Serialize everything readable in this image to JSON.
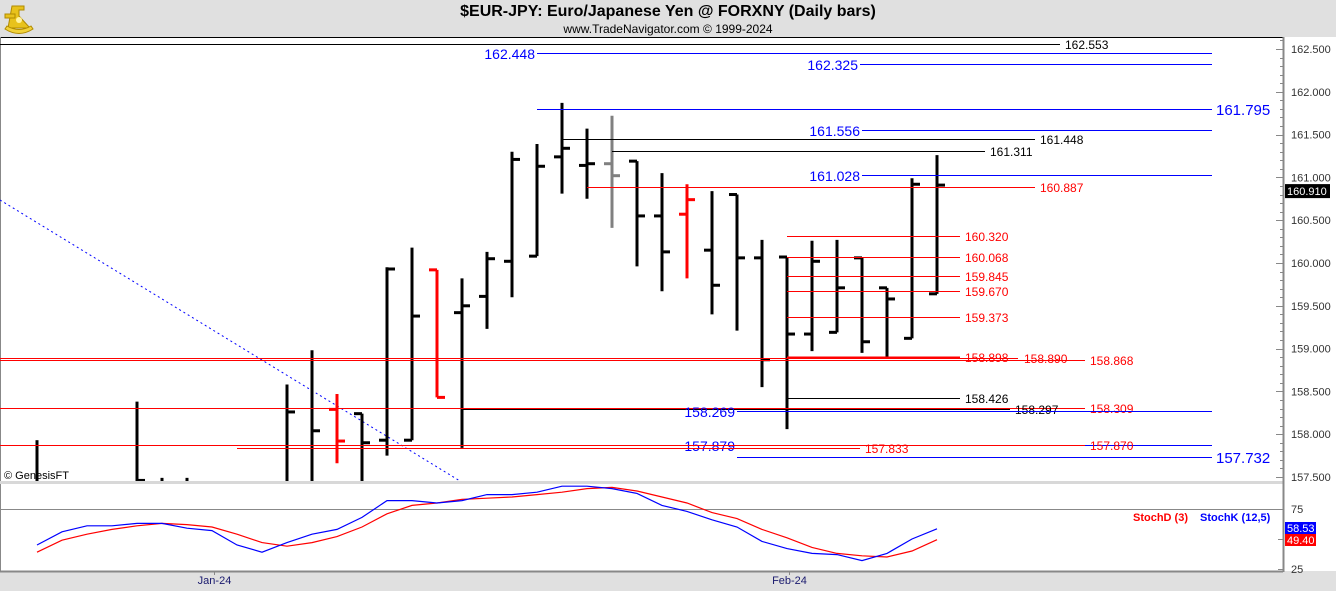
{
  "header": {
    "title": "$EUR-JPY:  Euro/Japanese Yen @ FORXNY  (Daily bars)",
    "subtitle": "www.TradeNavigator.com © 1999-2024",
    "logo_icon": "sextant-icon"
  },
  "watermark": "© GenesisFT",
  "colors": {
    "up_bar": "#000000",
    "down_bar": "#ff0000",
    "gray_bar": "#808080",
    "blue": "#0000ff",
    "red": "#ff0000",
    "black": "#000000",
    "panel_bg": "#ffffff",
    "frame_bg": "#e0e0e0"
  },
  "chart_data": [
    {
      "type": "ohlc",
      "title": "$EUR-JPY:  Euro/Japanese Yen @ FORXNY  (Daily bars)",
      "ylim": [
        157.5,
        162.6
      ],
      "y_ticks": [
        "157.500",
        "158.000",
        "158.500",
        "159.000",
        "159.500",
        "160.000",
        "160.500",
        "161.000",
        "161.500",
        "162.000",
        "162.500"
      ],
      "x_tick_labels": [
        {
          "label": "Jan-24",
          "bar": 7.1
        },
        {
          "label": "Feb-24",
          "bar": 30.1
        }
      ],
      "last_price_label": "160.910",
      "bars": [
        {
          "o": 157.3,
          "h": 157.93,
          "l": 157.2,
          "c": 157.4,
          "color": "black"
        },
        null,
        null,
        null,
        {
          "o": 157.3,
          "h": 158.38,
          "l": 157.2,
          "c": 157.46,
          "color": "black"
        },
        {
          "o": 157.3,
          "h": 157.49,
          "l": 157.2,
          "c": 157.35,
          "color": "black"
        },
        {
          "o": 157.3,
          "h": 157.49,
          "l": 157.2,
          "c": 157.35,
          "color": "black"
        },
        null,
        null,
        null,
        {
          "o": 157.3,
          "h": 158.58,
          "l": 157.2,
          "c": 158.26,
          "color": "black"
        },
        {
          "o": 157.3,
          "h": 158.98,
          "l": 157.2,
          "c": 158.04,
          "color": "black"
        },
        {
          "o": 158.29,
          "h": 158.47,
          "l": 157.66,
          "c": 157.92,
          "color": "red"
        },
        {
          "o": 158.24,
          "h": 158.24,
          "l": 157.2,
          "c": 157.9,
          "color": "black"
        },
        {
          "o": 157.93,
          "h": 159.95,
          "l": 157.75,
          "c": 159.93,
          "color": "black"
        },
        {
          "o": 157.93,
          "h": 160.18,
          "l": 157.93,
          "c": 159.38,
          "color": "black"
        },
        {
          "o": 159.92,
          "h": 159.92,
          "l": 158.43,
          "c": 158.43,
          "color": "red"
        },
        {
          "o": 159.42,
          "h": 159.82,
          "l": 157.84,
          "c": 159.5,
          "color": "black"
        },
        {
          "o": 159.61,
          "h": 160.13,
          "l": 159.23,
          "c": 160.05,
          "color": "black"
        },
        {
          "o": 160.02,
          "h": 161.3,
          "l": 159.6,
          "c": 161.21,
          "color": "black"
        },
        {
          "o": 160.08,
          "h": 161.39,
          "l": 160.08,
          "c": 161.13,
          "color": "black"
        },
        {
          "o": 161.24,
          "h": 161.87,
          "l": 160.81,
          "c": 161.34,
          "color": "black"
        },
        {
          "o": 161.14,
          "h": 161.57,
          "l": 160.75,
          "c": 161.16,
          "color": "black"
        },
        {
          "o": 161.16,
          "h": 161.72,
          "l": 160.41,
          "c": 161.02,
          "color": "gray"
        },
        {
          "o": 161.19,
          "h": 161.19,
          "l": 159.96,
          "c": 160.55,
          "color": "black"
        },
        {
          "o": 160.55,
          "h": 161.05,
          "l": 159.67,
          "c": 160.13,
          "color": "black"
        },
        {
          "o": 160.57,
          "h": 160.92,
          "l": 159.82,
          "c": 160.74,
          "color": "red"
        },
        {
          "o": 160.15,
          "h": 160.84,
          "l": 159.4,
          "c": 159.74,
          "color": "black"
        },
        {
          "o": 160.8,
          "h": 160.8,
          "l": 159.21,
          "c": 160.06,
          "color": "black"
        },
        {
          "o": 160.06,
          "h": 160.27,
          "l": 158.55,
          "c": 158.87,
          "color": "black"
        },
        {
          "o": 160.07,
          "h": 160.07,
          "l": 158.06,
          "c": 159.17,
          "color": "black"
        },
        {
          "o": 159.17,
          "h": 160.26,
          "l": 158.97,
          "c": 160.02,
          "color": "black"
        },
        {
          "o": 159.19,
          "h": 160.27,
          "l": 159.19,
          "c": 159.71,
          "color": "black"
        },
        {
          "o": 160.06,
          "h": 160.06,
          "l": 158.95,
          "c": 159.08,
          "color": "black"
        },
        {
          "o": 159.71,
          "h": 159.71,
          "l": 158.89,
          "c": 159.58,
          "color": "black"
        },
        {
          "o": 159.12,
          "h": 160.99,
          "l": 159.12,
          "c": 160.92,
          "color": "black"
        },
        {
          "o": 159.64,
          "h": 161.26,
          "l": 159.64,
          "c": 160.91,
          "color": "black"
        }
      ],
      "levels": [
        {
          "value": 162.553,
          "label": "162.553",
          "color": "black"
        },
        {
          "value": 162.448,
          "label": "162.448",
          "color": "blue"
        },
        {
          "value": 162.325,
          "label": "162.325",
          "color": "blue"
        },
        {
          "value": 161.795,
          "label": "161.795",
          "color": "blue"
        },
        {
          "value": 161.556,
          "label": "161.556",
          "color": "blue"
        },
        {
          "value": 161.448,
          "label": "161.448",
          "color": "black"
        },
        {
          "value": 161.311,
          "label": "161.311",
          "color": "black"
        },
        {
          "value": 161.028,
          "label": "161.028",
          "color": "blue"
        },
        {
          "value": 160.887,
          "label": "160.887",
          "color": "red"
        },
        {
          "value": 160.32,
          "label": "160.320",
          "color": "red"
        },
        {
          "value": 160.068,
          "label": "160.068",
          "color": "red"
        },
        {
          "value": 159.845,
          "label": "159.845",
          "color": "red"
        },
        {
          "value": 159.67,
          "label": "159.670",
          "color": "red"
        },
        {
          "value": 159.373,
          "label": "159.373",
          "color": "red"
        },
        {
          "value": 158.898,
          "label": "158.898",
          "color": "red"
        },
        {
          "value": 158.89,
          "label": "158.890",
          "color": "red"
        },
        {
          "value": 158.868,
          "label": "158.868",
          "color": "red"
        },
        {
          "value": 158.426,
          "label": "158.426",
          "color": "black"
        },
        {
          "value": 158.309,
          "label": "158.309",
          "color": "red"
        },
        {
          "value": 158.297,
          "label": "158.297",
          "color": "black"
        },
        {
          "value": 158.269,
          "label": "158.269",
          "color": "blue"
        },
        {
          "value": 157.879,
          "label": "157.879",
          "color": "blue"
        },
        {
          "value": 157.87,
          "label": "157.870",
          "color": "red"
        },
        {
          "value": 157.833,
          "label": "157.833",
          "color": "red"
        },
        {
          "value": 157.732,
          "label": "157.732",
          "color": "blue"
        }
      ],
      "trendline": {
        "style": "dotted",
        "color": "blue"
      }
    },
    {
      "type": "line",
      "ylim": [
        15,
        100
      ],
      "y_ticks": [
        "75",
        "25"
      ],
      "reference_line": 75,
      "series": [
        {
          "name": "StochD (3)",
          "color": "#ff0000",
          "last_label": "49.40",
          "values": [
            39,
            49,
            54,
            58,
            61,
            63,
            62,
            60,
            54,
            47,
            44,
            47,
            52,
            60,
            71,
            78,
            80,
            83,
            84,
            85,
            87,
            89,
            92,
            93,
            90,
            85,
            80,
            72,
            67,
            58,
            51,
            43,
            38,
            36,
            35,
            40,
            49.4
          ]
        },
        {
          "name": "StochK (12,5)",
          "color": "#0000ff",
          "last_label": "58.53",
          "values": [
            45,
            56,
            61,
            61,
            63,
            63,
            59,
            57,
            45,
            39,
            47,
            54,
            58,
            68,
            82,
            82,
            80,
            82,
            87,
            87,
            89,
            94,
            94,
            92,
            88,
            78,
            73,
            66,
            60,
            48,
            42,
            38,
            37,
            32,
            38,
            50,
            58.53
          ]
        }
      ]
    }
  ]
}
